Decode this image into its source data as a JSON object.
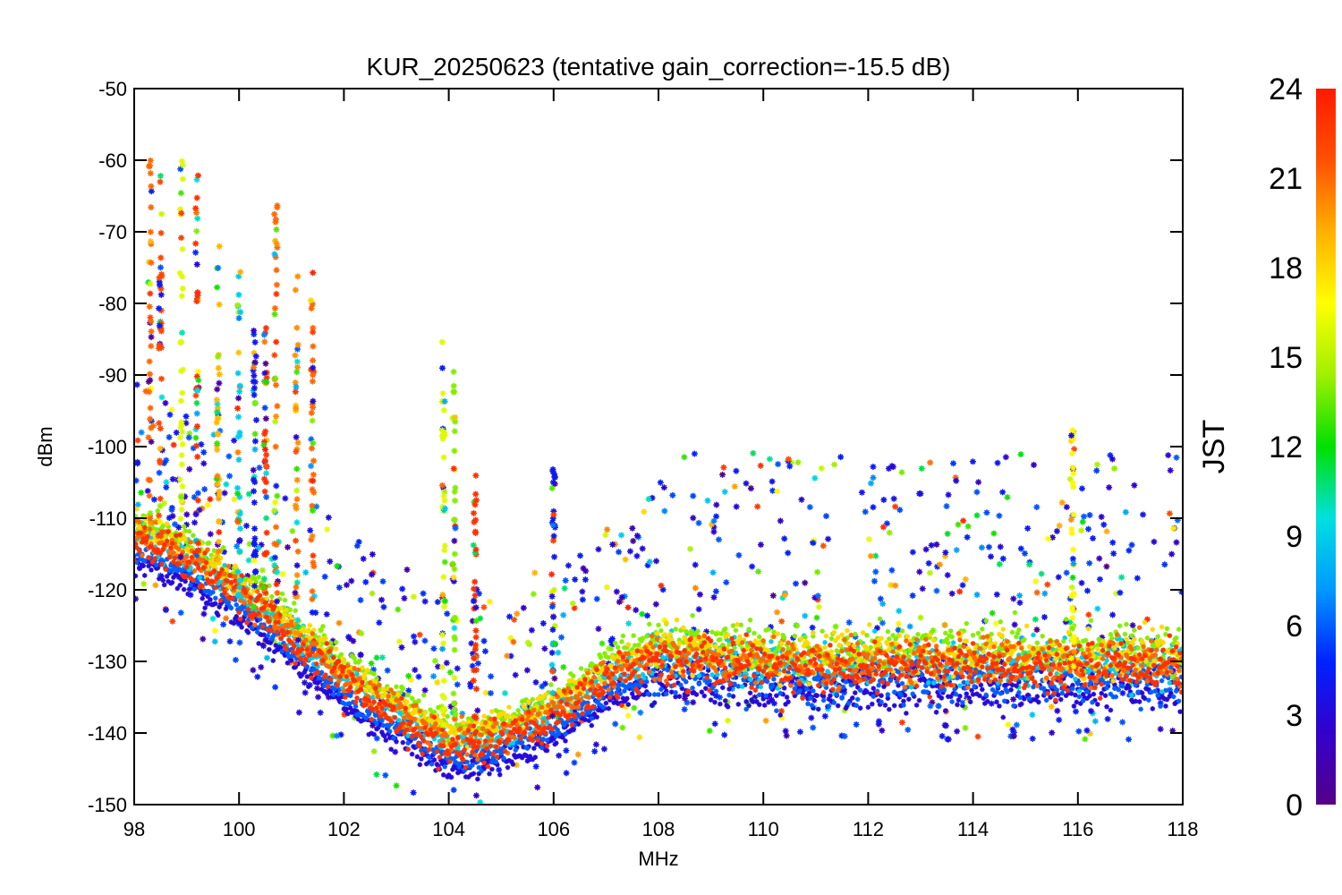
{
  "chart_data": {
    "type": "scatter",
    "title": "KUR_20250623 (tentative gain_correction=-15.5 dB)",
    "xlabel": "MHz",
    "ylabel": "dBm",
    "xlim": [
      98,
      118
    ],
    "ylim": [
      -150,
      -50
    ],
    "x_ticks": [
      "98",
      "100",
      "102",
      "104",
      "106",
      "108",
      "110",
      "112",
      "114",
      "116",
      "118"
    ],
    "y_ticks": [
      "-50",
      "-60",
      "-70",
      "-80",
      "-90",
      "-100",
      "-110",
      "-120",
      "-130",
      "-140",
      "-150"
    ],
    "grid": false,
    "legend": "none",
    "marker": "asterisk",
    "colorbar": {
      "label": "JST",
      "range": [
        0,
        24
      ],
      "ticks": [
        "0",
        "3",
        "6",
        "9",
        "12",
        "15",
        "18",
        "21",
        "24"
      ],
      "colormap": "rainbow",
      "stops": [
        "#550088",
        "#3300cc",
        "#0022ff",
        "#0099ff",
        "#00e0e0",
        "#00e000",
        "#a0f000",
        "#ffff00",
        "#ffb000",
        "#ff5000",
        "#ff1a00"
      ]
    },
    "baseline_curve": {
      "x": [
        98,
        99,
        100,
        101,
        102,
        103,
        104,
        104.5,
        105,
        106,
        107,
        108,
        110,
        112,
        114,
        116,
        118
      ],
      "y": [
        -113,
        -116,
        -121,
        -127,
        -133,
        -138,
        -142,
        -142,
        -141,
        -138,
        -133,
        -130,
        -131,
        -131,
        -131,
        -131,
        -131
      ]
    },
    "peaks": [
      {
        "x": 98.3,
        "y": -60,
        "time": 21
      },
      {
        "x": 98.5,
        "y": -62,
        "time": 22
      },
      {
        "x": 98.9,
        "y": -58,
        "time": 16
      },
      {
        "x": 99.2,
        "y": -58,
        "time": 23
      },
      {
        "x": 99.6,
        "y": -70,
        "time": 19
      },
      {
        "x": 100.0,
        "y": -75,
        "time": 9
      },
      {
        "x": 100.3,
        "y": -83,
        "time": 4
      },
      {
        "x": 100.5,
        "y": -82,
        "time": 23
      },
      {
        "x": 100.7,
        "y": -66,
        "time": 21
      },
      {
        "x": 101.1,
        "y": -75,
        "time": 20
      },
      {
        "x": 101.4,
        "y": -74,
        "time": 21
      },
      {
        "x": 103.9,
        "y": -85,
        "time": 16
      },
      {
        "x": 104.1,
        "y": -85,
        "time": 14
      },
      {
        "x": 104.5,
        "y": -103,
        "time": 23
      },
      {
        "x": 106.0,
        "y": -101,
        "time": 4
      },
      {
        "x": 115.9,
        "y": -97,
        "time": 17
      }
    ]
  }
}
